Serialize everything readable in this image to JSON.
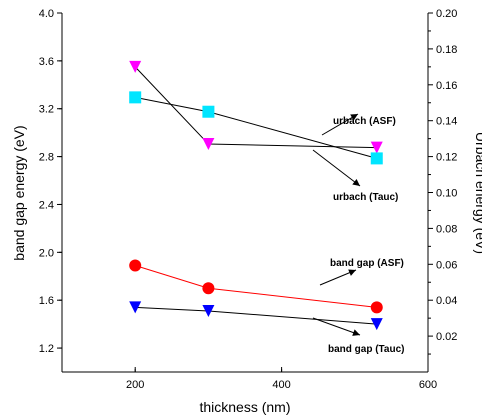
{
  "chart_data": {
    "type": "scatter",
    "xlabel": "thickness (nm)",
    "ylabel": "band gap energy (eV)",
    "y2label": "Urbach energy (eV)",
    "xlim": [
      100,
      600
    ],
    "ylim": [
      1.0,
      4.0
    ],
    "y2lim": [
      0.0,
      0.2
    ],
    "xticks": [
      200,
      400,
      600
    ],
    "yticks": [
      1.2,
      1.6,
      2.0,
      2.4,
      2.8,
      3.2,
      3.6,
      4.0
    ],
    "y2ticks": [
      0.02,
      0.04,
      0.06,
      0.08,
      0.1,
      0.12,
      0.14,
      0.16,
      0.18,
      0.2
    ],
    "grid": false,
    "series": [
      {
        "axis": "y2",
        "marker": "triangle-down",
        "color": "#ff00ff",
        "line_color": "#000000",
        "x": [
          200,
          300,
          530
        ],
        "y": [
          0.17,
          0.127,
          0.125
        ]
      },
      {
        "axis": "y2",
        "marker": "square",
        "color": "#00e5ff",
        "line_color": "#000000",
        "x": [
          200,
          300,
          530
        ],
        "y": [
          0.153,
          0.145,
          0.119
        ]
      },
      {
        "axis": "y",
        "marker": "circle",
        "color": "#ff0000",
        "line_color": "#ff0000",
        "x": [
          200,
          300,
          530
        ],
        "y": [
          1.89,
          1.7,
          1.54
        ]
      },
      {
        "axis": "y",
        "marker": "triangle-down",
        "color": "#0000ff",
        "line_color": "#000000",
        "x": [
          200,
          300,
          530
        ],
        "y": [
          1.54,
          1.51,
          1.4
        ]
      }
    ],
    "annotations": [
      {
        "text": "urbach (ASF)"
      },
      {
        "text": "urbach (Tauc)"
      },
      {
        "text": "band gap (ASF)"
      },
      {
        "text": "band gap (Tauc)"
      }
    ]
  }
}
